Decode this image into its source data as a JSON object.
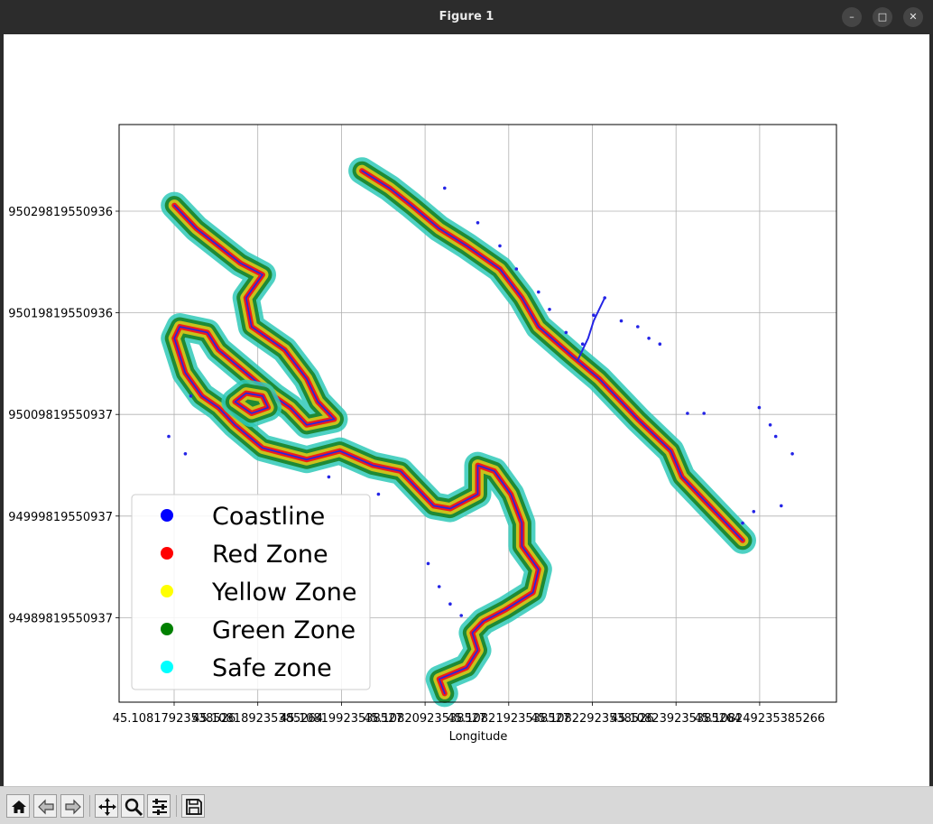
{
  "window": {
    "title": "Figure 1",
    "buttons": [
      {
        "name": "minimize",
        "glyph": "–"
      },
      {
        "name": "maximize",
        "glyph": "□"
      },
      {
        "name": "close",
        "glyph": "✕"
      }
    ]
  },
  "toolbar": {
    "buttons": [
      {
        "icon": "home-icon"
      },
      {
        "icon": "back-icon"
      },
      {
        "icon": "forward-icon"
      },
      {
        "icon": "pan-icon"
      },
      {
        "icon": "zoom-icon"
      },
      {
        "icon": "configure-icon"
      },
      {
        "icon": "save-icon"
      }
    ]
  },
  "chart_data": {
    "type": "scatter",
    "xlabel": "Longitude",
    "ylabel": "",
    "x_ticks": [
      "45.10817923538526",
      "45.108189235385264",
      "45.10819923538527",
      "45.10820923538527",
      "45.10821923538527",
      "45.10822923538526",
      "45.108239235385264",
      "45.108249235385266"
    ],
    "y_ticks": [
      "95029819550936",
      "95019819550936",
      "95009819550937",
      "94999819550937",
      "94989819550937"
    ],
    "grid": true,
    "legend_position": "lower-left",
    "legend": [
      {
        "label": "Coastline",
        "color": "#0000ff"
      },
      {
        "label": "Red Zone",
        "color": "#ff0000"
      },
      {
        "label": "Yellow Zone",
        "color": "#ffff00"
      },
      {
        "label": "Green Zone",
        "color": "#008000"
      },
      {
        "label": "Safe zone",
        "color": "#00ffff"
      }
    ],
    "zone_colors": {
      "safe": "#2fc9b8",
      "green": "#1e8a35",
      "yellow": "#c8c21c",
      "red": "#ee1c1c",
      "coast": "#2424e6"
    },
    "paths": [
      {
        "name": "left-coast",
        "points": [
          [
            1,
            8.6
          ],
          [
            1.4,
            8.2
          ],
          [
            2.2,
            7.6
          ],
          [
            2.6,
            7.4
          ],
          [
            2.3,
            7
          ],
          [
            2.4,
            6.5
          ],
          [
            3,
            6.1
          ],
          [
            3.4,
            5.6
          ],
          [
            3.6,
            5.2
          ],
          [
            3.9,
            4.9
          ],
          [
            3.4,
            4.8
          ],
          [
            3.1,
            5.1
          ],
          [
            2.8,
            5.3
          ],
          [
            2.3,
            5.7
          ],
          [
            1.8,
            6.1
          ],
          [
            1.6,
            6.4
          ],
          [
            1.1,
            6.5
          ],
          [
            1,
            6.3
          ],
          [
            1.2,
            5.7
          ],
          [
            1.5,
            5.3
          ],
          [
            1.8,
            5.1
          ],
          [
            2.1,
            4.8
          ],
          [
            2.6,
            4.4
          ],
          [
            3,
            4.3
          ],
          [
            3.4,
            4.2
          ],
          [
            4,
            4.35
          ],
          [
            4.6,
            4.1
          ],
          [
            5.1,
            4
          ],
          [
            5.4,
            3.7
          ],
          [
            5.7,
            3.4
          ],
          [
            6,
            3.35
          ],
          [
            6.5,
            3.6
          ],
          [
            6.5,
            4.1
          ],
          [
            6.8,
            4
          ],
          [
            7.1,
            3.6
          ],
          [
            7.3,
            3.1
          ],
          [
            7.3,
            2.7
          ],
          [
            7.6,
            2.3
          ],
          [
            7.5,
            1.9
          ],
          [
            7,
            1.6
          ],
          [
            6.6,
            1.4
          ],
          [
            6.4,
            1.2
          ],
          [
            6.5,
            0.9
          ],
          [
            6.3,
            0.6
          ],
          [
            5.8,
            0.4
          ],
          [
            5.9,
            0.15
          ]
        ]
      },
      {
        "name": "right-coast",
        "points": [
          [
            4.4,
            9.2
          ],
          [
            4.9,
            8.9
          ],
          [
            5.3,
            8.6
          ],
          [
            5.8,
            8.2
          ],
          [
            6.3,
            7.9
          ],
          [
            6.9,
            7.5
          ],
          [
            7.3,
            7
          ],
          [
            7.6,
            6.5
          ],
          [
            8.2,
            6
          ],
          [
            8.7,
            5.6
          ],
          [
            9.4,
            4.9
          ],
          [
            10,
            4.35
          ],
          [
            10.2,
            3.9
          ],
          [
            10.6,
            3.5
          ],
          [
            11,
            3.1
          ],
          [
            11.3,
            2.8
          ]
        ]
      },
      {
        "name": "inner-loop",
        "points": [
          [
            2.1,
            5.2
          ],
          [
            2.4,
            5
          ],
          [
            2.7,
            5.1
          ],
          [
            2.6,
            5.3
          ],
          [
            2.3,
            5.35
          ],
          [
            2.1,
            5.2
          ]
        ]
      }
    ],
    "scatter_points": [
      [
        6.5,
        8.3
      ],
      [
        6.9,
        7.9
      ],
      [
        7.2,
        7.5
      ],
      [
        7.6,
        7.1
      ],
      [
        7.8,
        6.8
      ],
      [
        8.1,
        6.4
      ],
      [
        8.4,
        6.2
      ],
      [
        8.6,
        6.7
      ],
      [
        8.8,
        7
      ],
      [
        9.1,
        6.6
      ],
      [
        9.4,
        6.5
      ],
      [
        9.6,
        6.3
      ],
      [
        9.8,
        6.2
      ],
      [
        10.3,
        5
      ],
      [
        10.6,
        5
      ],
      [
        11.6,
        5.1
      ],
      [
        11.8,
        4.8
      ],
      [
        11.9,
        4.6
      ],
      [
        12.2,
        4.3
      ],
      [
        11.5,
        3.3
      ],
      [
        11.3,
        3.1
      ],
      [
        12,
        3.4
      ],
      [
        1.3,
        5.3
      ],
      [
        0.9,
        4.6
      ],
      [
        1.2,
        4.3
      ],
      [
        3.8,
        3.9
      ],
      [
        4.7,
        3.6
      ],
      [
        5.6,
        2.4
      ],
      [
        6.2,
        1.5
      ],
      [
        6,
        1.7
      ],
      [
        5.8,
        2
      ],
      [
        5.9,
        8.9
      ]
    ],
    "stream": [
      [
        8.8,
        7
      ],
      [
        8.7,
        6.8
      ],
      [
        8.6,
        6.6
      ],
      [
        8.5,
        6.3
      ],
      [
        8.4,
        6.1
      ],
      [
        8.3,
        5.9
      ]
    ]
  }
}
